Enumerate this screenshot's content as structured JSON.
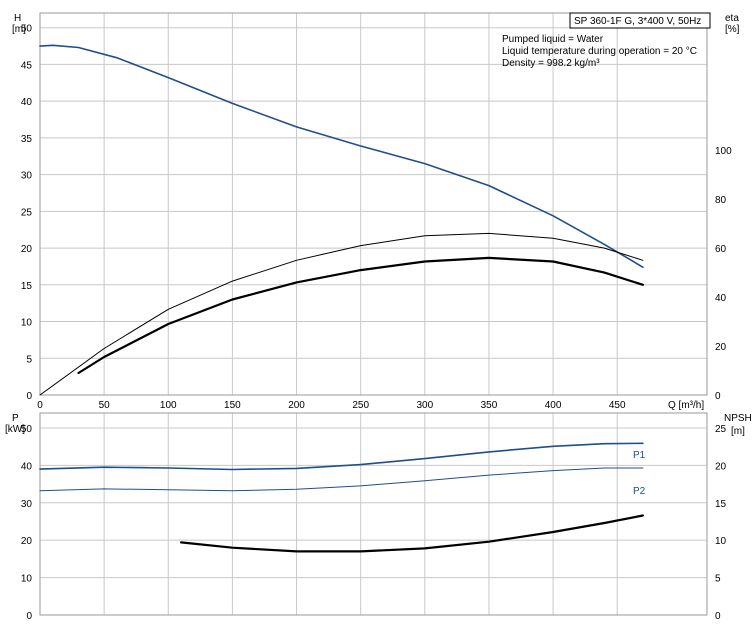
{
  "chart_data": [
    {
      "type": "line",
      "title": "SP 360-1F G, 3*400 V, 50Hz",
      "notes": [
        "Pumped liquid = Water",
        "Liquid temperature during operation = 20 °C",
        "Density = 998.2 kg/m³"
      ],
      "xlabel": "Q [m³/h]",
      "ylabel": [
        "H",
        "[m]"
      ],
      "y2label": [
        "eta",
        "[%]"
      ],
      "xlim": [
        0,
        520
      ],
      "xticks": [
        0,
        50,
        100,
        150,
        200,
        250,
        300,
        350,
        400,
        450
      ],
      "ylim": [
        0,
        52
      ],
      "yticks": [
        0,
        5,
        10,
        15,
        20,
        25,
        30,
        35,
        40,
        45,
        50
      ],
      "y2lim": [
        0,
        156
      ],
      "y2ticks": [
        0,
        20,
        40,
        60,
        80,
        100
      ],
      "grid": true,
      "series": [
        {
          "id": "H",
          "axis": "left",
          "color": "#1f4e8c",
          "width": 1.6,
          "x": [
            0,
            10,
            30,
            60,
            100,
            150,
            200,
            250,
            300,
            350,
            400,
            440,
            470
          ],
          "y": [
            47.5,
            47.6,
            47.3,
            45.9,
            43.2,
            39.7,
            36.5,
            33.9,
            31.5,
            28.5,
            24.4,
            20.5,
            17.4
          ]
        },
        {
          "id": "eta-thin",
          "axis": "right",
          "color": "#000000",
          "width": 1.0,
          "x": [
            0,
            50,
            100,
            150,
            200,
            250,
            300,
            350,
            400,
            440,
            470
          ],
          "y": [
            0,
            19,
            35,
            46.5,
            55,
            61,
            65,
            66,
            64,
            60,
            55
          ]
        },
        {
          "id": "eta-thick",
          "axis": "right",
          "color": "#000000",
          "width": 2.2,
          "x": [
            30,
            50,
            100,
            150,
            200,
            250,
            300,
            350,
            400,
            440,
            470
          ],
          "y": [
            9,
            15.5,
            29,
            39,
            46,
            51,
            54.5,
            56,
            54.5,
            50,
            45
          ]
        }
      ]
    },
    {
      "type": "line",
      "xlim": [
        0,
        520
      ],
      "xticks": [
        0,
        50,
        100,
        150,
        200,
        250,
        300,
        350,
        400,
        450
      ],
      "ylabel": [
        "P",
        "[kW]"
      ],
      "y2label": [
        "NPSH",
        "[m]"
      ],
      "ylim": [
        0,
        54
      ],
      "yticks": [
        0,
        10,
        20,
        30,
        40,
        50
      ],
      "y2lim": [
        0,
        27
      ],
      "y2ticks": [
        0,
        5,
        10,
        15,
        20,
        25
      ],
      "grid": true,
      "series": [
        {
          "id": "P1",
          "name": "P1",
          "axis": "left",
          "color": "#1f4e8c",
          "width": 1.6,
          "x": [
            0,
            50,
            100,
            150,
            200,
            250,
            300,
            350,
            400,
            440,
            470
          ],
          "y": [
            39.0,
            39.5,
            39.3,
            38.9,
            39.2,
            40.2,
            41.8,
            43.6,
            45.1,
            45.8,
            45.9
          ]
        },
        {
          "id": "P2",
          "name": "P2",
          "axis": "left",
          "color": "#1f4e8c",
          "width": 1.0,
          "x": [
            0,
            50,
            100,
            150,
            200,
            250,
            300,
            350,
            400,
            440,
            470
          ],
          "y": [
            33.2,
            33.7,
            33.5,
            33.2,
            33.6,
            34.5,
            35.9,
            37.4,
            38.6,
            39.3,
            39.3
          ]
        },
        {
          "id": "NPSH",
          "axis": "right",
          "color": "#000000",
          "width": 2.2,
          "x": [
            110,
            150,
            200,
            250,
            300,
            350,
            400,
            440,
            470
          ],
          "y": [
            9.7,
            9.0,
            8.5,
            8.5,
            8.9,
            9.8,
            11.1,
            12.3,
            13.3
          ]
        }
      ]
    }
  ]
}
